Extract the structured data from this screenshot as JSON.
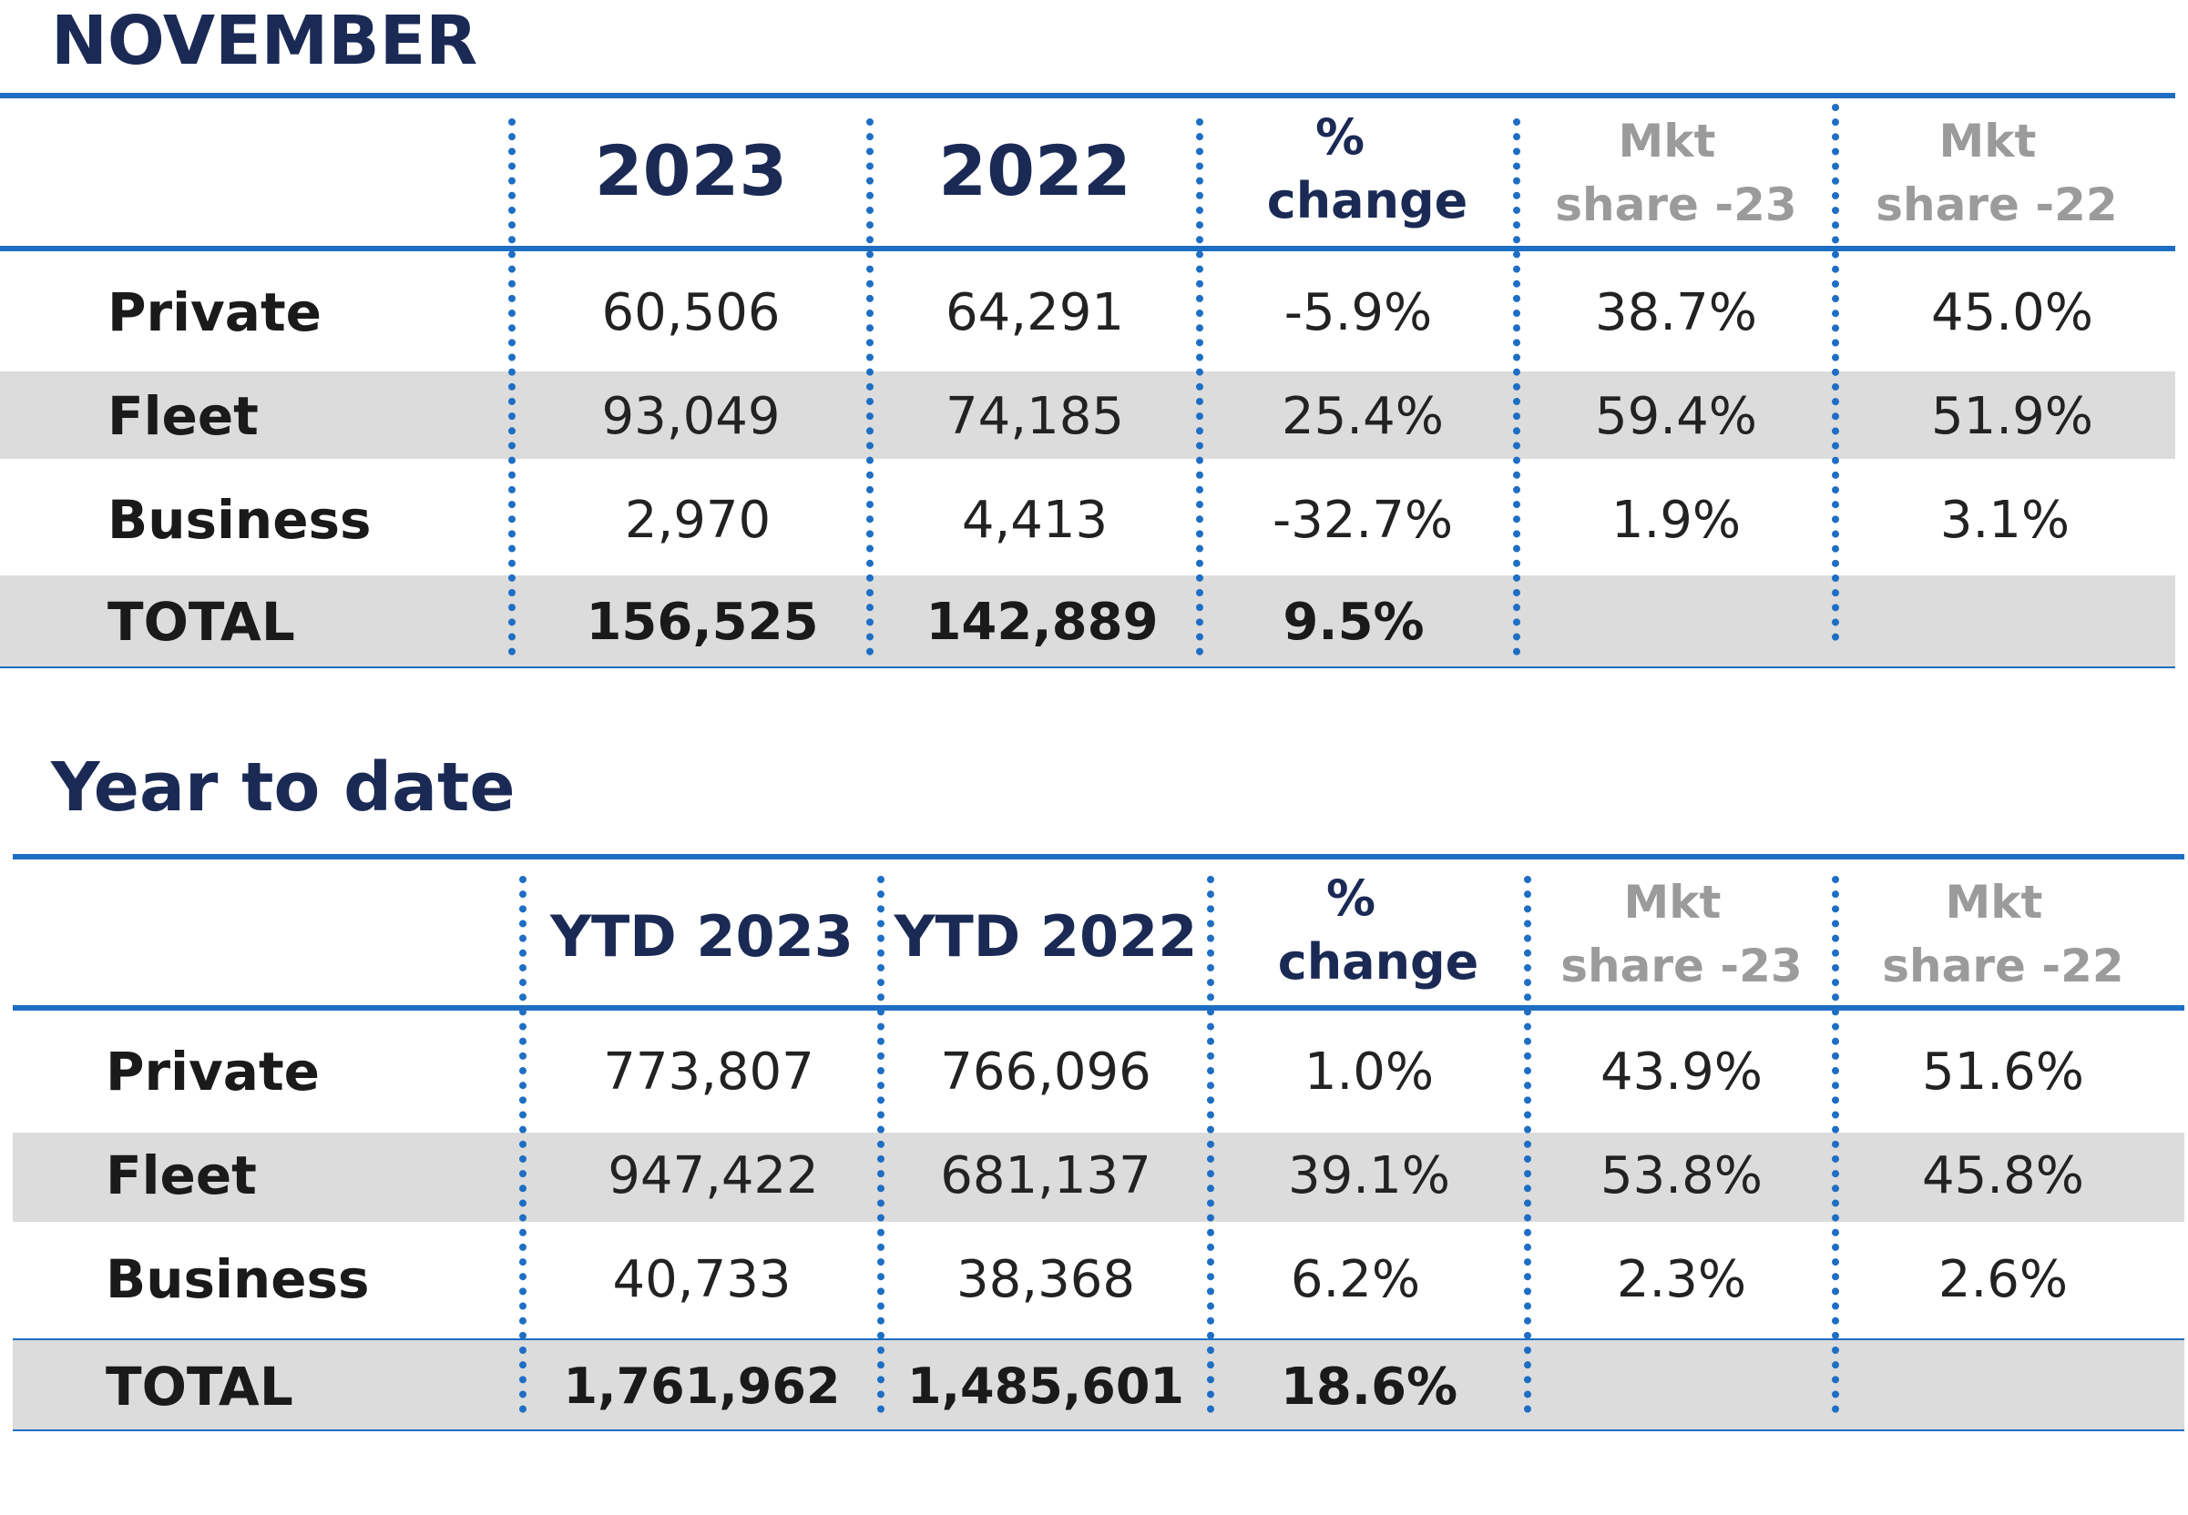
{
  "november": {
    "title": "NOVEMBER",
    "headers": {
      "col2023": "2023",
      "col2022": "2022",
      "pct_line1": "%",
      "pct_line2": "change",
      "mkt23_line1": "Mkt",
      "mkt23_line2": "share -23",
      "mkt22_line1": "Mkt",
      "mkt22_line2": "share -22"
    },
    "rows": [
      {
        "label": "Private",
        "v2023": "60,506",
        "v2022": "64,291",
        "pct": "-5.9%",
        "mkt23": "38.7%",
        "mkt22": "45.0%"
      },
      {
        "label": "Fleet",
        "v2023": "93,049",
        "v2022": "74,185",
        "pct": "25.4%",
        "mkt23": "59.4%",
        "mkt22": "51.9%"
      },
      {
        "label": "Business",
        "v2023": "2,970",
        "v2022": "4,413",
        "pct": "-32.7%",
        "mkt23": "1.9%",
        "mkt22": "3.1%"
      }
    ],
    "total": {
      "label": "TOTAL",
      "v2023": "156,525",
      "v2022": "142,889",
      "pct": "9.5%"
    }
  },
  "ytd": {
    "title": "Year to date",
    "headers": {
      "col2023": "YTD 2023",
      "col2022": "YTD 2022",
      "pct_line1": "%",
      "pct_line2": "change",
      "mkt23_line1": "Mkt",
      "mkt23_line2": "share -23",
      "mkt22_line1": "Mkt",
      "mkt22_line2": "share -22"
    },
    "rows": [
      {
        "label": "Private",
        "v2023": "773,807",
        "v2022": "766,096",
        "pct": "1.0%",
        "mkt23": "43.9%",
        "mkt22": "51.6%"
      },
      {
        "label": "Fleet",
        "v2023": "947,422",
        "v2022": "681,137",
        "pct": "39.1%",
        "mkt23": "53.8%",
        "mkt22": "45.8%"
      },
      {
        "label": "Business",
        "v2023": "40,733",
        "v2022": "38,368",
        "pct": "6.2%",
        "mkt23": "2.3%",
        "mkt22": "2.6%"
      }
    ],
    "total": {
      "label": "TOTAL",
      "v2023": "1,761,962",
      "v2022": "1,485,601",
      "pct": "18.6%"
    }
  }
}
